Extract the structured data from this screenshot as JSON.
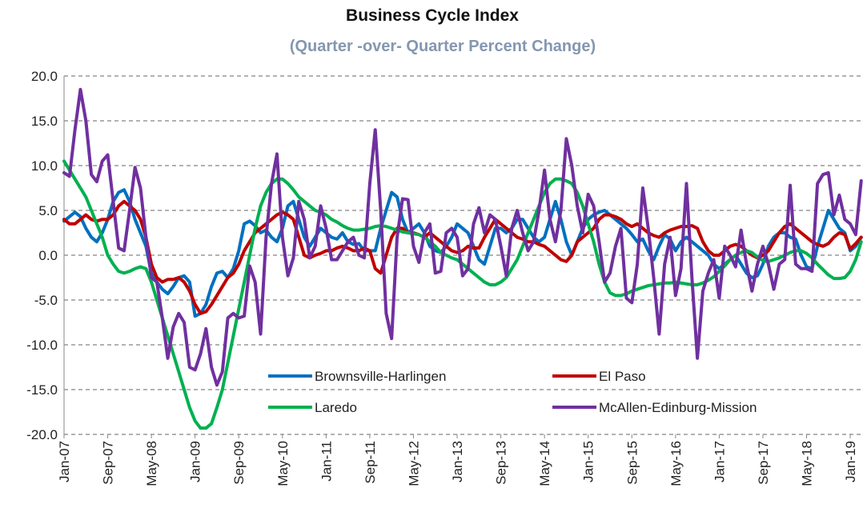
{
  "chart_data": {
    "type": "line",
    "title": "Business Cycle Index",
    "subtitle": "(Quarter -over- Quarter Percent Change)",
    "categories": [
      "Jan-07",
      null,
      null,
      null,
      null,
      null,
      null,
      null,
      "Sep-07",
      null,
      null,
      null,
      null,
      null,
      null,
      null,
      "May-08",
      null,
      null,
      null,
      null,
      null,
      null,
      null,
      "Jan-09",
      null,
      null,
      null,
      null,
      null,
      null,
      null,
      "Sep-09",
      null,
      null,
      null,
      null,
      null,
      null,
      null,
      "May-10",
      null,
      null,
      null,
      null,
      null,
      null,
      null,
      "Jan-11",
      null,
      null,
      null,
      null,
      null,
      null,
      null,
      "Sep-11",
      null,
      null,
      null,
      null,
      null,
      null,
      null,
      "May-12",
      null,
      null,
      null,
      null,
      null,
      null,
      null,
      "Jan-13",
      null,
      null,
      null,
      null,
      null,
      null,
      null,
      "Sep-13",
      null,
      null,
      null,
      null,
      null,
      null,
      null,
      "May-14",
      null,
      null,
      null,
      null,
      null,
      null,
      null,
      "Jan-15",
      null,
      null,
      null,
      null,
      null,
      null,
      null,
      "Sep-15",
      null,
      null,
      null,
      null,
      null,
      null,
      null,
      "May-16",
      null,
      null,
      null,
      null,
      null,
      null,
      null,
      "Jan-17",
      null,
      null,
      null,
      null,
      null,
      null,
      null,
      "Sep-17",
      null,
      null,
      null,
      null,
      null,
      null,
      null,
      "May-18",
      null,
      null,
      null,
      null,
      null,
      null,
      null,
      "Jan-19",
      null,
      null
    ],
    "series": [
      {
        "name": "Brownsville-Harlingen",
        "color": "#0070c0",
        "values": [
          3.8,
          4.3,
          4.8,
          4.3,
          3,
          2,
          1.5,
          2.5,
          4,
          6,
          7,
          7.3,
          6,
          4,
          2.5,
          1,
          -2,
          -3,
          -3.8,
          -4.3,
          -3.5,
          -2.5,
          -2.3,
          -3,
          -6.8,
          -6.5,
          -5.5,
          -3.5,
          -2,
          -1.8,
          -2.5,
          -1.5,
          0.5,
          3.5,
          3.8,
          3.3,
          2.5,
          2.8,
          2,
          1.5,
          3,
          5.5,
          6,
          4,
          2,
          1,
          2,
          3,
          2.5,
          2,
          1.8,
          2.5,
          1.5,
          1.2,
          1.3,
          0.5,
          0.5,
          0.5,
          3,
          5,
          7,
          6.5,
          4,
          2.5,
          3,
          3.5,
          2.5,
          1,
          0.5,
          0.3,
          1,
          2,
          3.5,
          3,
          2.5,
          1,
          -0.5,
          -1,
          1,
          3,
          3,
          2.5,
          3,
          4,
          4,
          3,
          2,
          1.5,
          2,
          4,
          6,
          4,
          1.5,
          0,
          1.5,
          3,
          4,
          4.5,
          4.8,
          5,
          4.5,
          4,
          3.5,
          3,
          2.3,
          1.5,
          1.8,
          0.5,
          -0.5,
          1,
          2.3,
          1.8,
          0.5,
          1.5,
          2,
          1.5,
          1,
          0.5,
          0,
          -1,
          -1.5,
          -1,
          -0.5,
          0,
          -1,
          -2,
          -2.5,
          -2.3,
          -1,
          1,
          2,
          2.5,
          2.5,
          2,
          1.8,
          0,
          -1.3,
          -1.5,
          1,
          3,
          5,
          4,
          3,
          2.5,
          0.5,
          1,
          2
        ]
      },
      {
        "name": "El Paso",
        "color": "#c00000",
        "values": [
          4,
          3.5,
          3.5,
          4,
          4.5,
          4,
          3.8,
          4,
          4,
          4.5,
          5.5,
          6,
          5.5,
          5,
          4,
          2,
          -1,
          -2.5,
          -3,
          -2.7,
          -2.7,
          -2.5,
          -3,
          -4,
          -5.5,
          -6.5,
          -6.3,
          -5.5,
          -4.5,
          -3.5,
          -2.5,
          -2,
          -1,
          0.5,
          1.5,
          2.5,
          3,
          3.5,
          4,
          4.5,
          4.8,
          4.5,
          4,
          2,
          0,
          -0.3,
          0,
          0.2,
          0.5,
          0.5,
          0.8,
          1,
          0.8,
          0.5,
          0.5,
          0.8,
          0.5,
          -1.5,
          -2,
          0,
          2,
          3,
          3,
          2.5,
          2.5,
          2.3,
          2,
          2.5,
          2,
          1.5,
          1,
          0.5,
          0.3,
          0.5,
          1,
          0.8,
          0.8,
          2,
          3,
          4,
          3.5,
          3,
          2.5,
          2,
          1.8,
          1.5,
          1.5,
          1.2,
          1,
          0.5,
          0,
          -0.5,
          -0.7,
          0,
          1.5,
          2,
          2.5,
          3,
          4,
          4.5,
          4.5,
          4.3,
          4,
          3.5,
          3.2,
          3.5,
          3,
          2.5,
          2.2,
          2,
          2.5,
          2.8,
          3,
          3.2,
          3.2,
          3.3,
          3,
          1.5,
          0.5,
          0,
          0,
          0.5,
          1,
          1.2,
          1,
          0.5,
          0,
          -0.3,
          0,
          0.5,
          1.5,
          2.5,
          3.2,
          3.5,
          3,
          2.5,
          2,
          1.5,
          1.2,
          1,
          1.3,
          2,
          2.5,
          2.3,
          0.7,
          1.3,
          2
        ]
      },
      {
        "name": "Laredo",
        "color": "#00b050",
        "values": [
          10.5,
          9.5,
          8.5,
          7.5,
          6.5,
          5,
          3.5,
          2,
          0,
          -1,
          -1.8,
          -2,
          -1.8,
          -1.5,
          -1.3,
          -1.5,
          -3,
          -5,
          -7,
          -9,
          -11,
          -13,
          -15,
          -17,
          -18.5,
          -19.3,
          -19.3,
          -18.8,
          -17,
          -15,
          -12,
          -9,
          -6,
          -3,
          0,
          3,
          5.5,
          7,
          8,
          8.5,
          8.5,
          8,
          7.3,
          6.5,
          6,
          5.5,
          5,
          4.8,
          4.5,
          4,
          3.7,
          3.3,
          3,
          2.8,
          2.8,
          2.9,
          3,
          3.2,
          3.3,
          3.2,
          3,
          2.8,
          2.6,
          2.5,
          2.4,
          2.3,
          2,
          1.5,
          1,
          0.3,
          0,
          -0.3,
          -0.5,
          -1,
          -1.5,
          -2,
          -2.5,
          -3,
          -3.3,
          -3.3,
          -3,
          -2.5,
          -1.5,
          -0.5,
          1,
          2.5,
          4,
          5.5,
          7,
          8,
          8.5,
          8.5,
          8.3,
          8,
          7,
          5.5,
          3.5,
          1.5,
          -1,
          -3,
          -4.2,
          -4.5,
          -4.5,
          -4.3,
          -4,
          -3.8,
          -3.6,
          -3.4,
          -3.3,
          -3.2,
          -3.1,
          -3.1,
          -3,
          -3.1,
          -3.2,
          -3.3,
          -3.3,
          -3.1,
          -2.8,
          -2.4,
          -1.8,
          -1.2,
          -0.5,
          0,
          0.3,
          0.5,
          0.3,
          -0.2,
          -0.6,
          -0.7,
          -0.5,
          -0.3,
          0,
          0.3,
          0.5,
          0.5,
          0.2,
          -0.3,
          -1,
          -1.6,
          -2.2,
          -2.6,
          -2.6,
          -2.5,
          -1.8,
          -0.5,
          1.5
        ]
      },
      {
        "name": "McAllen-Edinburg-Mission",
        "color": "#7030a0",
        "values": [
          9.2,
          8.8,
          14,
          18.5,
          15,
          9,
          8.2,
          10.5,
          11.2,
          6,
          0.8,
          0.5,
          5,
          9.8,
          7.5,
          2,
          -2.5,
          -3,
          -7,
          -11.5,
          -8,
          -6.5,
          -7.5,
          -12.5,
          -12.8,
          -11,
          -8.2,
          -12.5,
          -14.5,
          -13,
          -7,
          -6.5,
          -7,
          -6.8,
          -1.2,
          -3,
          -8.8,
          2,
          8,
          11.3,
          2,
          -2.3,
          -0.3,
          6,
          4,
          -0.3,
          1,
          5.5,
          3,
          -0.5,
          -0.5,
          0.5,
          1.5,
          2,
          0,
          -0.3,
          8,
          14,
          5,
          -6.5,
          -9.3,
          2,
          6.3,
          6.2,
          1,
          -0.8,
          2.5,
          3.5,
          -2,
          -1.8,
          2.5,
          3,
          2,
          -2.3,
          -1.5,
          3.5,
          5.3,
          2.5,
          4.5,
          4,
          1,
          -2.3,
          3,
          5,
          2.5,
          0.5,
          1.5,
          5,
          9.5,
          4,
          1.5,
          5,
          13,
          10,
          5.5,
          2.5,
          6.8,
          5.5,
          1.5,
          -3,
          -2,
          1,
          3,
          -4.8,
          -5.3,
          -1,
          7.5,
          3,
          -2.5,
          -8.8,
          -1,
          2,
          -4.5,
          -1.5,
          8,
          -2.5,
          -11.5,
          -4,
          -2,
          -0.5,
          -4.8,
          1,
          0,
          -1.3,
          2.8,
          -1,
          -4,
          -1,
          1,
          -1,
          -3.8,
          -1,
          -0.5,
          7.8,
          -1,
          -1.5,
          -1.5,
          -1.8,
          8,
          9,
          9.2,
          4.5,
          6.7,
          4,
          3.5,
          2.3,
          8.3
        ]
      }
    ],
    "ylim": [
      -20,
      20
    ],
    "yticks": [
      {
        "value": -20,
        "label": "-20.0"
      },
      {
        "value": -15,
        "label": "-15.0"
      },
      {
        "value": -10,
        "label": "-10.0"
      },
      {
        "value": -5,
        "label": "-5.0"
      },
      {
        "value": 0,
        "label": "0.0"
      },
      {
        "value": 5,
        "label": "5.0"
      },
      {
        "value": 10,
        "label": "10.0"
      },
      {
        "value": 15,
        "label": "15.0"
      },
      {
        "value": 20,
        "label": "20.0"
      }
    ],
    "grid": true,
    "legend": "lower center"
  }
}
